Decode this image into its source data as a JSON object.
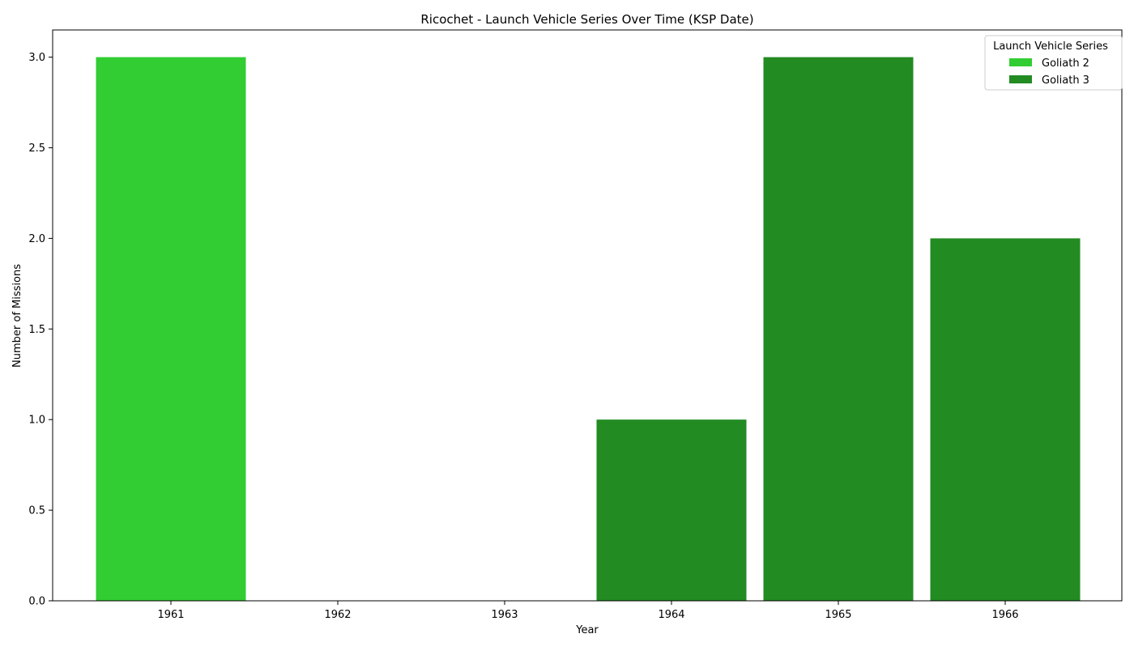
{
  "chart_data": {
    "type": "bar",
    "stacked": true,
    "title": "Ricochet - Launch Vehicle Series Over Time (KSP Date)",
    "xlabel": "Year",
    "ylabel": "Number of Missions",
    "categories": [
      "1961",
      "1962",
      "1963",
      "1964",
      "1965",
      "1966"
    ],
    "series": [
      {
        "name": "Goliath 2",
        "color": "#32cd32",
        "values": [
          3,
          0,
          0,
          0,
          0,
          0
        ]
      },
      {
        "name": "Goliath 3",
        "color": "#228b22",
        "values": [
          0,
          0,
          0,
          1,
          3,
          2
        ]
      }
    ],
    "ylim": [
      0,
      3.15
    ],
    "yticks": [
      "0.0",
      "0.5",
      "1.0",
      "1.5",
      "2.0",
      "2.5",
      "3.0"
    ],
    "grid": false,
    "legend": {
      "title": "Launch Vehicle Series",
      "position": "top-right"
    }
  }
}
